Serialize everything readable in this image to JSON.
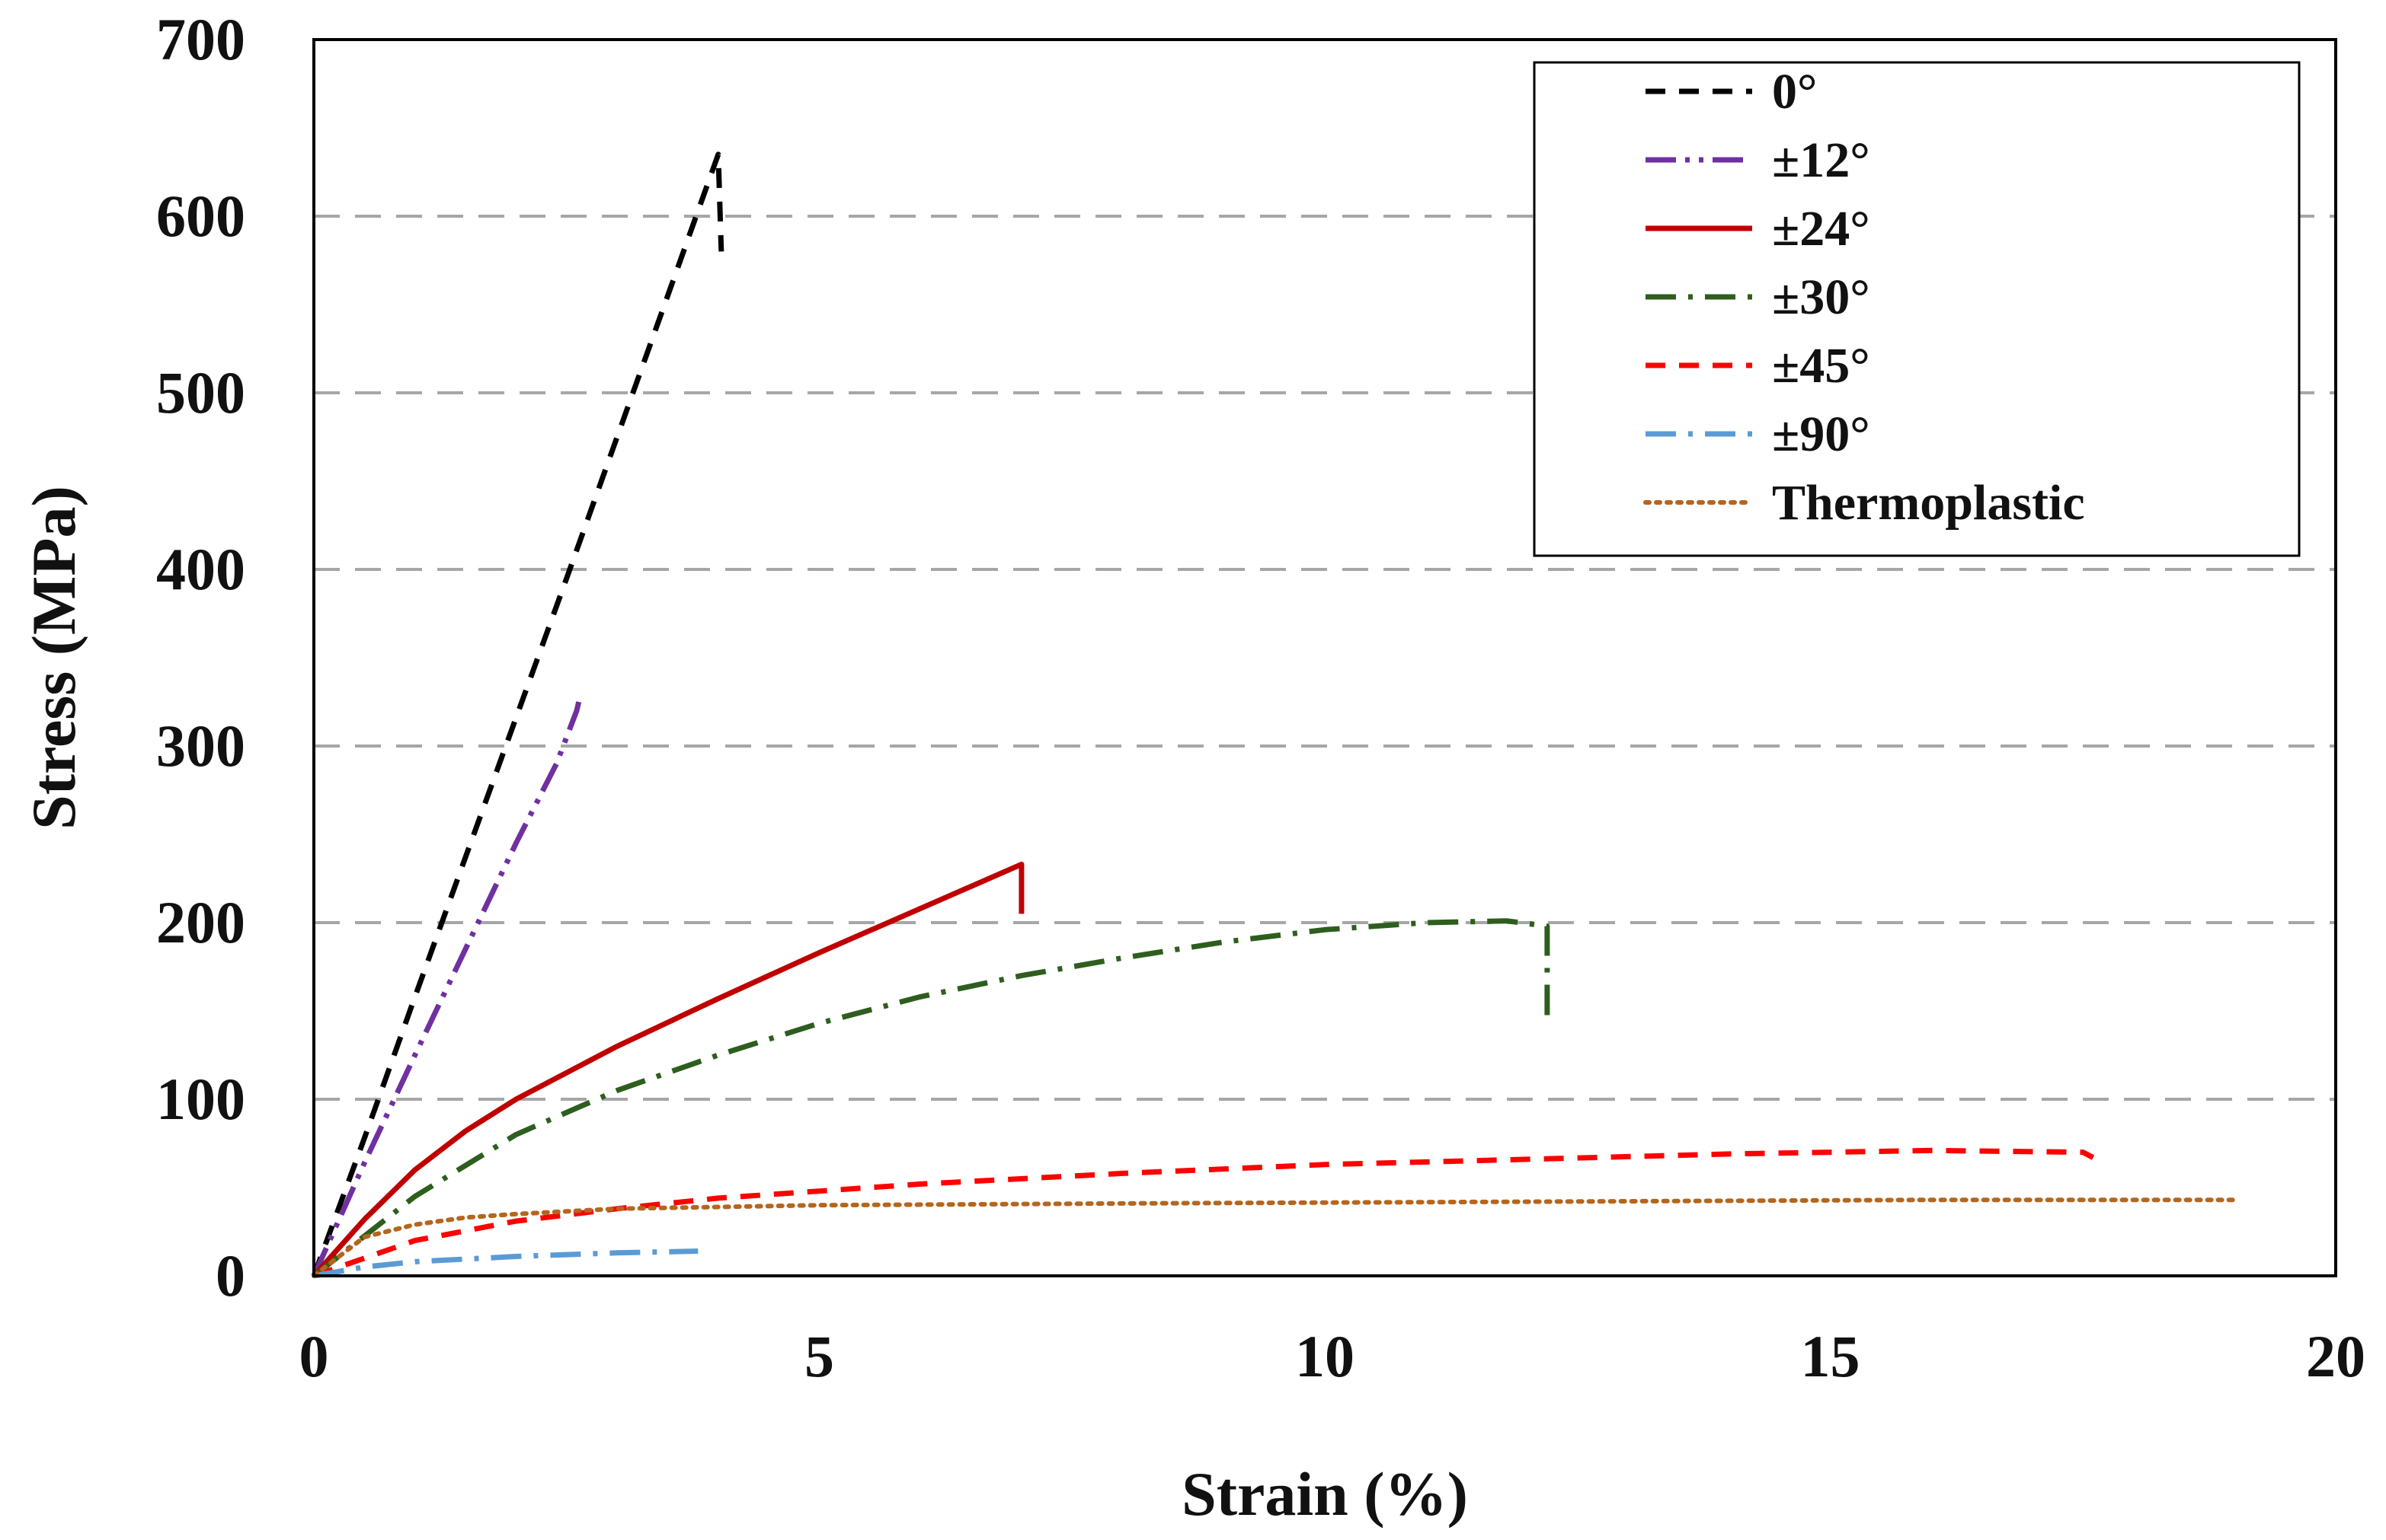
{
  "chart_data": {
    "type": "line",
    "title": "",
    "xlabel": "Strain (%)",
    "ylabel": "Stress (MPa)",
    "xlim": [
      0,
      20
    ],
    "ylim": [
      0,
      700
    ],
    "xticks": [
      "0",
      "5",
      "10",
      "15",
      "20"
    ],
    "yticks": [
      "0",
      "100",
      "200",
      "300",
      "400",
      "500",
      "600",
      "700"
    ],
    "grid": "horizontal-dashed",
    "legend_position": "top-right",
    "series": [
      {
        "name": "0°",
        "color": "#000000",
        "dash": "dashed",
        "x": [
          0,
          0.5,
          1.0,
          1.5,
          2.0,
          2.5,
          3.0,
          3.5,
          4.0,
          4.03
        ],
        "y": [
          0,
          78,
          158,
          237,
          316,
          395,
          475,
          555,
          635,
          580
        ]
      },
      {
        "name": "±12°",
        "color": "#7030A0",
        "dash": "dash-dot-dot",
        "x": [
          0,
          0.5,
          1.0,
          1.5,
          2.0,
          2.4,
          2.6,
          2.62
        ],
        "y": [
          0,
          64,
          125,
          185,
          245,
          290,
          320,
          325
        ]
      },
      {
        "name": "±24°",
        "color": "#C00000",
        "dash": "solid",
        "x": [
          0,
          0.5,
          1.0,
          1.5,
          2.0,
          3.0,
          4.0,
          5.0,
          6.0,
          7.0,
          7.0
        ],
        "y": [
          0,
          32,
          60,
          82,
          100,
          130,
          157,
          183,
          208,
          233,
          205
        ]
      },
      {
        "name": "±30°",
        "color": "#2E5E1E",
        "dash": "dash-dot",
        "x": [
          0,
          1.0,
          2.0,
          3.0,
          4.0,
          5.0,
          6.0,
          7.0,
          8.0,
          9.0,
          10.0,
          11.0,
          11.8,
          12.2,
          12.2
        ],
        "y": [
          0,
          45,
          80,
          105,
          125,
          143,
          158,
          170,
          180,
          189,
          196,
          200,
          201,
          198,
          145
        ]
      },
      {
        "name": "±45°",
        "color": "#FF0000",
        "dash": "dashed",
        "x": [
          0,
          1.0,
          2.0,
          3.0,
          4.0,
          6.0,
          8.0,
          10.0,
          12.0,
          14.0,
          16.0,
          17.5,
          17.6
        ],
        "y": [
          0,
          20,
          31,
          38,
          44,
          52,
          58,
          63,
          66,
          69,
          71,
          70,
          67
        ]
      },
      {
        "name": "±90°",
        "color": "#5B9BD5",
        "dash": "dash-dot",
        "x": [
          0,
          0.5,
          1.0,
          2.0,
          3.0,
          3.8
        ],
        "y": [
          0,
          5,
          8,
          11,
          13,
          14
        ]
      },
      {
        "name": "Thermoplastic",
        "color": "#B5651D",
        "dash": "dotted",
        "x": [
          0,
          0.5,
          1.0,
          1.5,
          2.0,
          3.0,
          5.0,
          8.0,
          12.0,
          16.0,
          19.0
        ],
        "y": [
          0,
          22,
          29,
          33,
          35,
          38,
          40,
          41,
          42,
          43,
          43
        ]
      }
    ]
  }
}
